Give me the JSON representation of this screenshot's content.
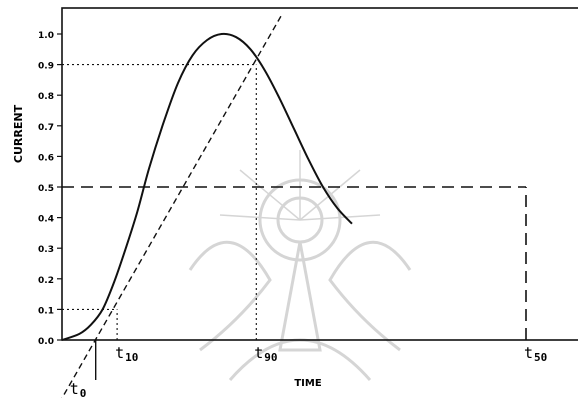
{
  "chart_data": {
    "type": "line",
    "title": "",
    "xlabel": "TIME",
    "ylabel": "CURRENT",
    "ylim": [
      0.0,
      1.0
    ],
    "yticks": [
      "0.0",
      "0.1",
      "0.2",
      "0.3",
      "0.4",
      "0.5",
      "0.6",
      "0.7",
      "0.8",
      "0.9",
      "1.0"
    ],
    "grid": false,
    "series": [
      {
        "style": "solid",
        "x": [
          0,
          0.06,
          0.1,
          0.14,
          0.18,
          0.22,
          0.26,
          0.3,
          0.35,
          0.4,
          0.45,
          0.5,
          0.55,
          0.6,
          0.65,
          0.7,
          0.75,
          0.8,
          0.85,
          0.9,
          0.95,
          1.0
        ],
        "y": [
          0.0,
          0.02,
          0.05,
          0.1,
          0.19,
          0.3,
          0.42,
          0.56,
          0.71,
          0.84,
          0.93,
          0.98,
          1.0,
          0.99,
          0.95,
          0.88,
          0.79,
          0.69,
          0.59,
          0.5,
          0.43,
          0.38
        ]
      },
      {
        "style": "dashed",
        "x": [
          0.0,
          0.75
        ],
        "y": [
          -0.19,
          1.05
        ]
      }
    ],
    "annotations": [
      {
        "kind": "hline",
        "y": 0.1,
        "x_from": 0.0,
        "x_to": 0.19,
        "style": "dotted"
      },
      {
        "kind": "vline",
        "x": 0.19,
        "y_from": 0.0,
        "y_to": 0.1,
        "style": "dotted"
      },
      {
        "kind": "hline",
        "y": 0.9,
        "x_from": 0.0,
        "x_to": 0.67,
        "style": "dotted"
      },
      {
        "kind": "vline",
        "x": 0.67,
        "y_from": 0.0,
        "y_to": 0.9,
        "style": "dotted"
      },
      {
        "kind": "hline",
        "y": 0.5,
        "x_from": 0.0,
        "x_to": 1.6,
        "style": "dashed"
      },
      {
        "kind": "vline",
        "x": 1.6,
        "y_from": 0.0,
        "y_to": 0.5,
        "style": "dashed"
      }
    ],
    "markers": [
      {
        "label": "t",
        "sub": "10",
        "x": 0.19
      },
      {
        "label": "t",
        "sub": "90",
        "x": 0.67
      },
      {
        "label": "t",
        "sub": "50",
        "x": 1.6
      },
      {
        "label": "t",
        "sub": "0",
        "x": 0.13
      }
    ]
  }
}
